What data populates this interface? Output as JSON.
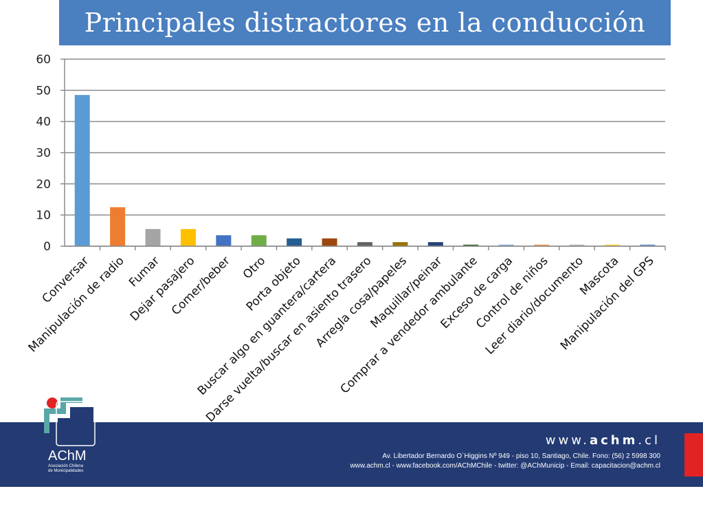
{
  "chart_data": {
    "type": "bar",
    "title": "Principales distractores en la conducción",
    "categories": [
      "Conversar",
      "Manipulación de radio",
      "Fumar",
      "Dejar pasajero",
      "Comer/beber",
      "Otro",
      "Porta objeto",
      "Buscar algo en guantera/cartera",
      "Darse vuelta/buscar en asiento trasero",
      "Arregla cosa/papeles",
      "Maquillar/peinar",
      "Comprar a vendedor ambulante",
      "Exceso de carga",
      "Control de niños",
      "Leer diario/documento",
      "Mascota",
      "Manipulación del GPS"
    ],
    "values": [
      48.5,
      12.5,
      5.5,
      5.5,
      3.5,
      3.5,
      2.5,
      2.5,
      1.3,
      1.3,
      1.3,
      0.5,
      0.5,
      0.5,
      0.5,
      0.5,
      0.5
    ],
    "colors": [
      "#5b9bd5",
      "#ed7d31",
      "#a5a5a5",
      "#ffc000",
      "#4472c4",
      "#70ad47",
      "#255e91",
      "#9e480e",
      "#636363",
      "#997300",
      "#264478",
      "#43682b",
      "#7cafdd",
      "#f1975a",
      "#b7b7b7",
      "#ffcd33",
      "#698ed0"
    ],
    "ylim": [
      0,
      60
    ],
    "yticks": [
      0,
      10,
      20,
      30,
      40,
      50,
      60
    ],
    "grid": true
  },
  "footer": {
    "site_prefix": "www.",
    "site_bold": "achm",
    "site_suffix": ".cl",
    "address": "Av. Libertador Bernardo O`Higgins Nº 949 - piso 10, Santiago, Chile.  Fono: (56) 2 5998 300",
    "contacts": "www.achm.cl -  www.facebook.com/AChMChile  - twitter: @AChMunicip - Email: capacitacion@achm.cl"
  },
  "logo": {
    "name": "AChM",
    "sub1": "Asociación Chilena",
    "sub2": "de Municipalidades"
  },
  "colors": {
    "title_bar": "#4a7fc0",
    "footer": "#233a73",
    "footer_accent": "#e12323"
  }
}
